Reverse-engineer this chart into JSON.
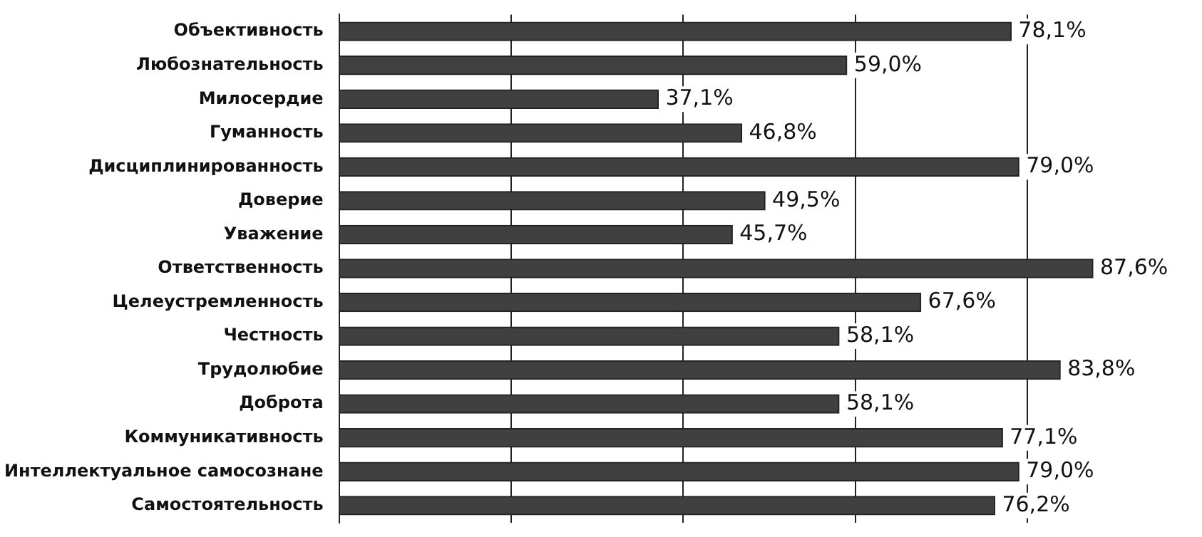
{
  "chart_data": {
    "type": "bar",
    "orientation": "horizontal",
    "categories": [
      "Объективность",
      "Любознательность",
      "Милосердие",
      "Гуманность",
      "Дисциплинированность",
      "Доверие",
      "Уважение",
      "Ответственность",
      "Целеустремленность",
      "Честность",
      "Трудолюбие",
      "Доброта",
      "Коммуникативность",
      "Интеллектуальное самосознане",
      "Самостоятельность"
    ],
    "values": [
      78.1,
      59.0,
      37.1,
      46.8,
      79.0,
      49.5,
      45.7,
      87.6,
      67.6,
      58.1,
      83.8,
      58.1,
      77.1,
      79.0,
      76.2
    ],
    "value_labels": [
      "78,1%",
      "59,0%",
      "37,1%",
      "46,8%",
      "79,0%",
      "49,5%",
      "45,7%",
      "87,6%",
      "67,6%",
      "58,1%",
      "83,8%",
      "58,1%",
      "77,1%",
      "79,0%",
      "76,2%"
    ],
    "color": "#404040",
    "xticks": [
      {
        "value": 0,
        "label": null
      },
      {
        "value": 20,
        "label": null
      },
      {
        "value": 40,
        "label": null
      },
      {
        "value": 60,
        "label": null
      },
      {
        "value": 80,
        "label": null
      }
    ],
    "grid": "x",
    "tick_labels": "y"
  }
}
